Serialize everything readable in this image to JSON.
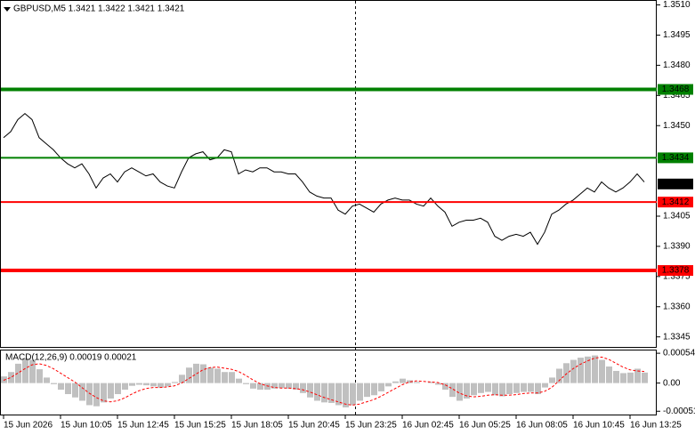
{
  "chart_data": [
    {
      "type": "line",
      "title": "GBPUSD,M5  1.3421 1.3422 1.3421 1.3421",
      "categories": [
        "15 Jun 2026",
        null,
        null,
        null,
        null,
        null,
        null,
        null,
        "15 Jun 10:05",
        null,
        null,
        null,
        null,
        null,
        null,
        null,
        "15 Jun 12:45",
        null,
        null,
        null,
        null,
        null,
        null,
        null,
        "15 Jun 15:25",
        null,
        null,
        null,
        null,
        null,
        null,
        null,
        "15 Jun 18:05",
        null,
        null,
        null,
        null,
        null,
        null,
        null,
        "15 Jun 20:45",
        null,
        null,
        null,
        null,
        null,
        null,
        null,
        "15 Jun 23:25",
        null,
        null,
        null,
        null,
        null,
        null,
        null,
        "16 Jun 02:45",
        null,
        null,
        null,
        null,
        null,
        null,
        null,
        "16 Jun 05:25",
        null,
        null,
        null,
        null,
        null,
        null,
        null,
        "16 Jun 08:05",
        null,
        null,
        null,
        null,
        null,
        null,
        null,
        "16 Jun 10:45",
        null,
        null,
        null,
        null,
        null,
        null,
        null,
        "16 Jun 13:25",
        null,
        null
      ],
      "series": [
        {
          "color": "#000000",
          "values": [
            1.3444,
            1.3447,
            1.3453,
            1.3456,
            1.3453,
            1.3444,
            1.3441,
            1.3438,
            1.3434,
            1.3431,
            1.3429,
            1.3431,
            1.3426,
            1.3419,
            1.3424,
            1.3426,
            1.3422,
            1.3427,
            1.3429,
            1.3427,
            1.3425,
            1.3426,
            1.3422,
            1.342,
            1.3419,
            1.3427,
            1.3434,
            1.3436,
            1.3437,
            1.3433,
            1.3434,
            1.3438,
            1.3437,
            1.3426,
            1.3428,
            1.3427,
            1.3429,
            1.3429,
            1.3427,
            1.3427,
            1.3426,
            1.3426,
            1.3422,
            1.3417,
            1.3415,
            1.3414,
            1.3414,
            1.3408,
            1.3406,
            1.341,
            1.3411,
            1.3409,
            1.3407,
            1.3411,
            1.3413,
            1.3414,
            1.3413,
            1.3413,
            1.3411,
            1.341,
            1.3414,
            1.341,
            1.3407,
            1.34,
            1.3402,
            1.3403,
            1.3403,
            1.3404,
            1.3402,
            1.3395,
            1.3393,
            1.3395,
            1.3396,
            1.3395,
            1.3397,
            1.3391,
            1.3397,
            1.3406,
            1.3408,
            1.3411,
            1.3413,
            1.3416,
            1.3419,
            1.3417,
            1.3422,
            1.3419,
            1.3417,
            1.3419,
            1.3422,
            1.3426,
            1.3422
          ]
        }
      ],
      "ylim": [
        1.334,
        1.3512
      ],
      "yticks": [
        {
          "value": 1.351,
          "label": "1.3510"
        },
        1.3495,
        {
          "value": 1.348,
          "label": "1.3480"
        },
        1.3465,
        {
          "value": 1.345,
          "label": "1.3450"
        },
        1.3405,
        {
          "value": 1.339,
          "label": "1.3390"
        },
        1.3375,
        {
          "value": 1.336,
          "label": "1.3360"
        },
        1.3345
      ],
      "levels": [
        {
          "value": 1.3468,
          "color": "#008000",
          "width": 4
        },
        {
          "value": 1.3434,
          "color": "#008000",
          "width": 2
        },
        {
          "value": 1.3412,
          "color": "#ff0000",
          "width": 2
        },
        {
          "value": 1.3378,
          "color": "#ff0000",
          "width": 4
        }
      ],
      "last_price": 1.3421,
      "last_price_color": "#000000"
    },
    {
      "type": "macd",
      "title": "MACD(12,26,9) 0.00019 0.00021",
      "series": [
        {
          "kind": "histogram",
          "color": "#c0c0c0",
          "values": [
            0.00012,
            0.0002,
            0.00035,
            0.00045,
            0.00042,
            0.00025,
            0.0001,
            -2e-05,
            -0.00012,
            -0.0002,
            -0.00026,
            -0.00032,
            -0.0004,
            -0.00042,
            -0.00035,
            -0.00028,
            -0.0002,
            -0.00012,
            -5e-05,
            -3e-05,
            -4e-05,
            -6e-05,
            -8e-05,
            -6e-05,
            2e-05,
            0.00015,
            0.00028,
            0.00035,
            0.00034,
            0.00028,
            0.00026,
            0.0002,
            0.0002,
            8e-05,
            -2e-05,
            -0.0001,
            -0.00012,
            -0.00012,
            -0.0001,
            -9e-05,
            -0.0001,
            -0.00012,
            -0.00018,
            -0.00026,
            -0.00032,
            -0.00035,
            -0.00036,
            -0.0004,
            -0.00044,
            -0.0004,
            -0.00032,
            -0.00025,
            -0.00022,
            -0.00015,
            -6e-05,
            3e-05,
            8e-05,
            5e-05,
            2e-05,
            0,
            2e-05,
            -3e-05,
            -0.00012,
            -0.00025,
            -0.00032,
            -0.00028,
            -0.00022,
            -0.00018,
            -0.00016,
            -0.00022,
            -0.00024,
            -0.0002,
            -0.00018,
            -0.00016,
            -0.00016,
            -0.0002,
            -8e-05,
            0.0001,
            0.00026,
            0.00036,
            0.00042,
            0.00046,
            0.00048,
            0.0005,
            0.00042,
            0.0003,
            0.00022,
            0.00018,
            0.00019,
            0.00026,
            0.00019
          ]
        },
        {
          "kind": "line",
          "style": "dashed",
          "color": "#ff0000",
          "values": [
            5e-05,
            0.0001,
            0.00018,
            0.00026,
            0.00033,
            0.00035,
            0.00032,
            0.00026,
            0.00018,
            0.0001,
            2e-05,
            -8e-05,
            -0.00018,
            -0.00026,
            -0.00032,
            -0.00034,
            -0.00032,
            -0.00027,
            -0.0002,
            -0.00014,
            -0.0001,
            -8e-05,
            -8e-05,
            -7e-05,
            -5e-05,
            0,
            8e-05,
            0.00016,
            0.00024,
            0.00028,
            0.00029,
            0.00027,
            0.00025,
            0.00021,
            0.00014,
            6e-05,
            -1e-05,
            -5e-05,
            -8e-05,
            -9e-05,
            -9e-05,
            -0.0001,
            -0.00012,
            -0.00016,
            -0.00021,
            -0.00026,
            -0.0003,
            -0.00034,
            -0.00038,
            -0.0004,
            -0.00038,
            -0.00034,
            -0.0003,
            -0.00024,
            -0.00017,
            -0.0001,
            -3e-05,
            2e-05,
            4e-05,
            3e-05,
            2e-05,
            1e-05,
            -3e-05,
            -0.0001,
            -0.00018,
            -0.00023,
            -0.00025,
            -0.00024,
            -0.00022,
            -0.00021,
            -0.00022,
            -0.00022,
            -0.00021,
            -0.00019,
            -0.00018,
            -0.00018,
            -0.00015,
            -8e-05,
            4e-05,
            0.00016,
            0.00026,
            0.00034,
            0.0004,
            0.00045,
            0.00047,
            0.00043,
            0.00036,
            0.00029,
            0.00024,
            0.00022,
            0.00021
          ]
        }
      ],
      "ylim": [
        -0.00057,
        0.00059
      ],
      "yticks": [
        0.00054,
        {
          "value": 0,
          "label": "0.00"
        },
        -0.00051
      ]
    }
  ]
}
